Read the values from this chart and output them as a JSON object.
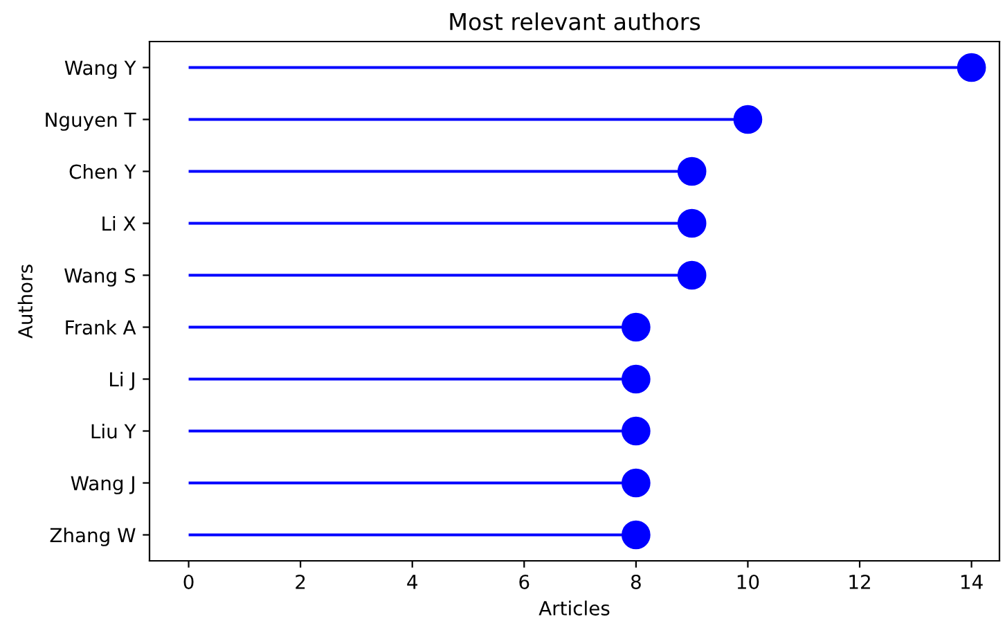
{
  "chart_data": {
    "type": "lollipop",
    "orientation": "horizontal",
    "title": "Most relevant authors",
    "xlabel": "Articles",
    "ylabel": "Authors",
    "categories": [
      "Wang Y",
      "Nguyen T",
      "Chen Y",
      "Li X",
      "Wang S",
      "Frank A",
      "Li J",
      "Liu Y",
      "Wang J",
      "Zhang W"
    ],
    "values": [
      14,
      10,
      9,
      9,
      9,
      8,
      8,
      8,
      8,
      8
    ],
    "color": "#0000ff",
    "marker": "circle",
    "xlim": [
      -0.7,
      14.5
    ],
    "xticks": [
      0,
      2,
      4,
      6,
      8,
      10,
      12,
      14
    ],
    "grid": false
  }
}
